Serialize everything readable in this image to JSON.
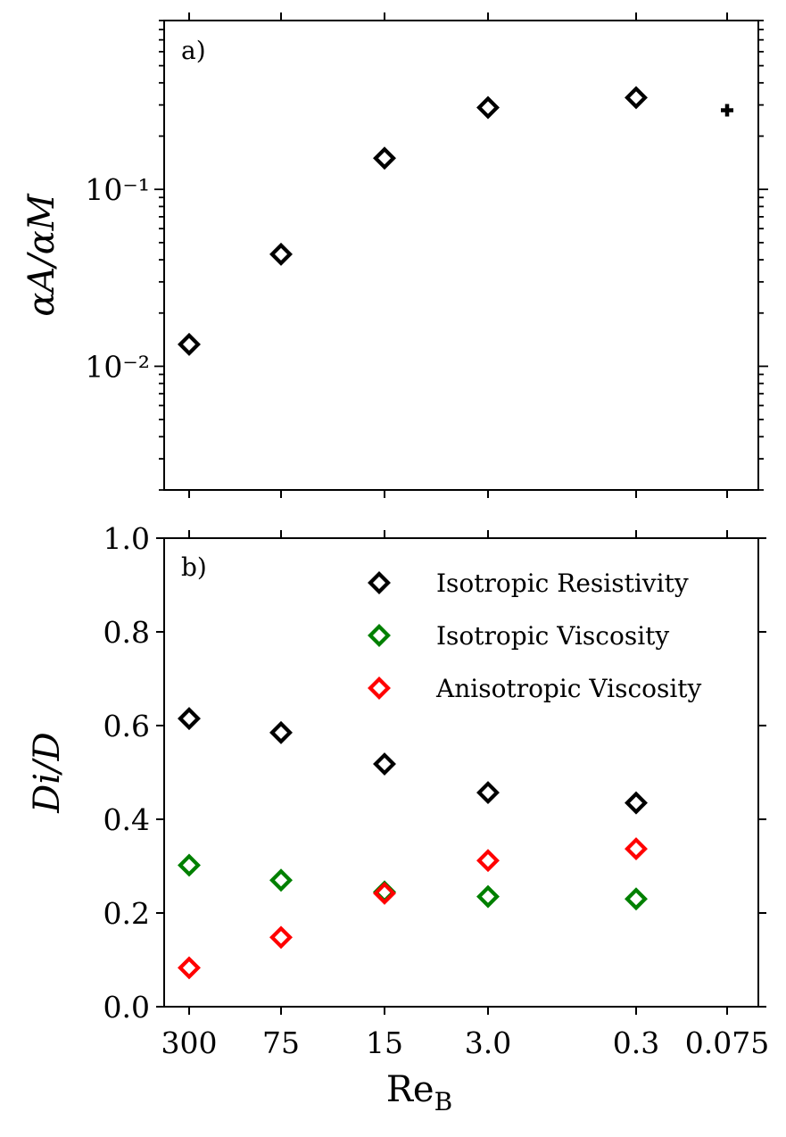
{
  "chart_data": [
    {
      "panel": "a)",
      "type": "scatter",
      "yscale": "log",
      "ylabel": "αA/αM",
      "ylim": [
        0.002,
        0.9
      ],
      "yticks": [
        {
          "value": 0.1,
          "label": "10⁻¹"
        },
        {
          "value": 0.01,
          "label": "10⁻²"
        }
      ],
      "x_categories": [
        "300",
        "75",
        "15",
        "3.0",
        "0.3",
        "0.075"
      ],
      "series": [
        {
          "name": "Isotropic Resistivity",
          "color": "#000000",
          "marker": "diamond",
          "x": [
            "300",
            "75",
            "15",
            "3.0",
            "0.3"
          ],
          "values": [
            0.0133,
            0.043,
            0.15,
            0.29,
            0.33
          ]
        },
        {
          "name": "Isotropic Resistivity (Re_B = 0.075)",
          "color": "#000000",
          "marker": "plus",
          "x": [
            "0.075"
          ],
          "values": [
            0.28
          ]
        }
      ]
    },
    {
      "panel": "b)",
      "type": "scatter",
      "ylabel": "Di/D",
      "ylim": [
        0.0,
        1.0
      ],
      "yticks": [
        "0.0",
        "0.2",
        "0.4",
        "0.6",
        "0.8",
        "1.0"
      ],
      "xlabel": "Re",
      "xlabel_sub": "B",
      "x_categories": [
        "300",
        "75",
        "15",
        "3.0",
        "0.3",
        "0.075"
      ],
      "legend_position": "top-right",
      "series": [
        {
          "name": "Isotropic Resistivity",
          "color": "#000000",
          "marker": "diamond",
          "x": [
            "300",
            "75",
            "15",
            "3.0",
            "0.3"
          ],
          "values": [
            0.615,
            0.585,
            0.518,
            0.457,
            0.435
          ]
        },
        {
          "name": "Isotropic Viscosity",
          "color": "#008000",
          "marker": "diamond",
          "x": [
            "300",
            "75",
            "15",
            "3.0",
            "0.3"
          ],
          "values": [
            0.302,
            0.27,
            0.245,
            0.235,
            0.23
          ]
        },
        {
          "name": "Anisotropic Viscosity",
          "color": "#ff0000",
          "marker": "diamond",
          "x": [
            "300",
            "75",
            "15",
            "3.0",
            "0.3"
          ],
          "values": [
            0.083,
            0.148,
            0.242,
            0.312,
            0.337
          ]
        }
      ]
    }
  ]
}
